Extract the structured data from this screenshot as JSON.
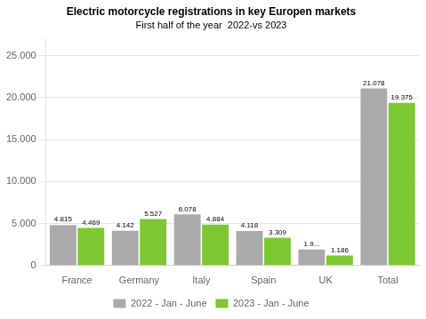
{
  "chart_data": {
    "type": "bar",
    "title": "Electric motorcycle registrations in key Europen markets",
    "subtitle": "First half of the year  2022-vs 2023",
    "categories": [
      "France",
      "Germany",
      "Italy",
      "Spain",
      "UK",
      "Total"
    ],
    "series": [
      {
        "name": "2022 - Jan - June",
        "color": "#aaaaaa",
        "values": [
          4815,
          4142,
          6078,
          4118,
          1900,
          21078
        ],
        "value_labels": [
          "4.815",
          "4.142",
          "6.078",
          "4.118",
          "1.9...",
          "21.078"
        ]
      },
      {
        "name": "2023 - Jan - June",
        "color": "#7dc832",
        "values": [
          4469,
          5527,
          4884,
          3309,
          1186,
          19375
        ],
        "value_labels": [
          "4.469",
          "5.527",
          "4.884",
          "3.309",
          "1.186",
          "19.375"
        ]
      }
    ],
    "ylim": [
      0,
      27000
    ],
    "yticks": [
      0,
      {
        "value": 5000,
        "label": "5.000"
      },
      {
        "value": 10000,
        "label": "10.000"
      },
      {
        "value": 15000,
        "label": "15.000"
      },
      {
        "value": 20000,
        "label": "20.000"
      },
      {
        "value": 25000,
        "label": "25.000"
      }
    ],
    "grid": true,
    "legend": "bottom",
    "data_labels": true
  }
}
